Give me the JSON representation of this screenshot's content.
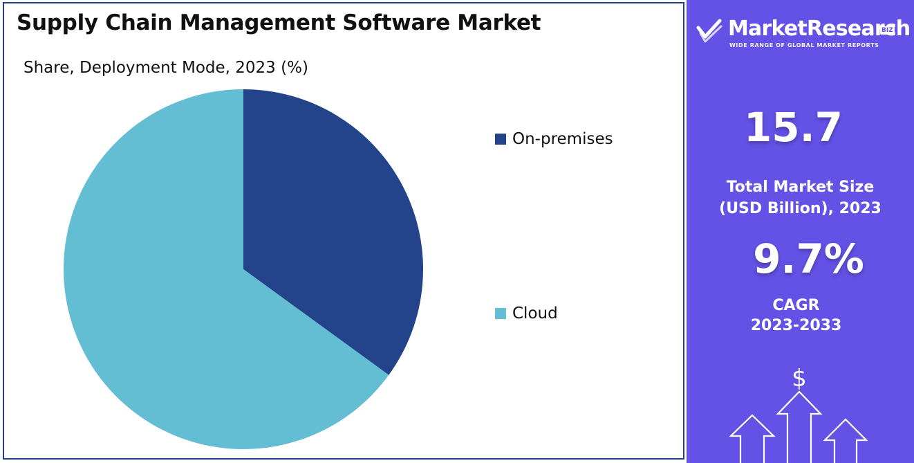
{
  "chart_panel": {
    "title": "Supply Chain Management Software Market",
    "subtitle": "Share, Deployment Mode, 2023 (%)"
  },
  "chart_data": {
    "type": "pie",
    "title": "Supply Chain Management Software Market",
    "subtitle": "Share, Deployment Mode, 2023 (%)",
    "categories": [
      "On-premises",
      "Cloud"
    ],
    "values": [
      35,
      65
    ],
    "colors": [
      "#23448b",
      "#63bdd3"
    ],
    "legend_position": "right",
    "start_angle_deg": 0,
    "direction": "clockwise"
  },
  "side_panel": {
    "brand_name": "MarketResearch",
    "brand_badge": "BIZ",
    "brand_tagline": "WIDE RANGE OF GLOBAL MARKET REPORTS",
    "market_size_value": "15.7",
    "market_size_label_line1": "Total Market Size",
    "market_size_label_line2": "(USD Billion), 2023",
    "cagr_value": "9.7%",
    "cagr_label_line1": "CAGR",
    "cagr_label_line2": "2023-2033",
    "growth_icon_symbol": "$",
    "background_color": "#6452e6",
    "icons": [
      "checkmark-logo-icon",
      "growth-arrows-icon"
    ]
  }
}
